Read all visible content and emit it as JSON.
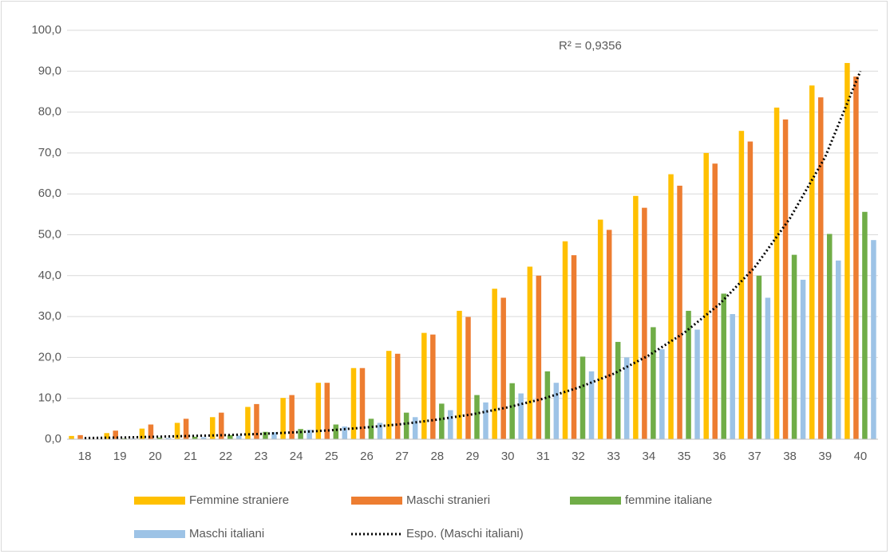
{
  "chart_data": {
    "type": "bar",
    "categories": [
      "18",
      "19",
      "20",
      "21",
      "22",
      "23",
      "24",
      "25",
      "26",
      "27",
      "28",
      "29",
      "30",
      "31",
      "32",
      "33",
      "34",
      "35",
      "36",
      "37",
      "38",
      "39",
      "40"
    ],
    "series": [
      {
        "name": "Femmine straniere",
        "color": "#ffc000",
        "values": [
          0.8,
          1.5,
          2.6,
          4.0,
          5.4,
          7.9,
          10.1,
          13.8,
          17.4,
          21.6,
          26.0,
          31.4,
          36.8,
          42.2,
          48.4,
          53.7,
          59.5,
          64.8,
          70.0,
          75.4,
          81.1,
          86.5,
          92.0
        ]
      },
      {
        "name": "Maschi stranieri",
        "color": "#ed7d31",
        "values": [
          1.0,
          2.1,
          3.6,
          5.0,
          6.5,
          8.6,
          10.8,
          13.8,
          17.4,
          20.9,
          25.6,
          29.9,
          34.6,
          40.0,
          45.0,
          51.2,
          56.6,
          62.0,
          67.4,
          72.8,
          78.2,
          83.6,
          88.7
        ]
      },
      {
        "name": "femmine italiane",
        "color": "#70ad47",
        "values": [
          0.1,
          0.2,
          0.4,
          0.6,
          1.0,
          1.8,
          2.5,
          3.6,
          5.0,
          6.5,
          8.7,
          10.8,
          13.7,
          16.6,
          20.2,
          23.8,
          27.4,
          31.4,
          35.6,
          40.0,
          45.1,
          50.2,
          55.6
        ]
      },
      {
        "name": "Maschi italiani",
        "color": "#9dc3e6",
        "values": [
          0.1,
          0.2,
          0.3,
          0.5,
          0.9,
          1.7,
          2.3,
          3.1,
          4.0,
          5.4,
          7.1,
          9.0,
          11.2,
          13.8,
          16.6,
          20.0,
          22.0,
          26.8,
          30.6,
          34.6,
          39.0,
          43.7,
          48.7
        ]
      }
    ],
    "trendline": {
      "name": "Espo. (Maschi italiani)",
      "color": "#000000",
      "label": "R² = 0,9356",
      "values": [
        0.3,
        0.4,
        0.6,
        0.8,
        1.0,
        1.3,
        1.7,
        2.2,
        2.9,
        3.7,
        4.8,
        6.1,
        7.8,
        9.9,
        12.6,
        16.0,
        20.5,
        26.0,
        33.0,
        42.0,
        54.0,
        69.0,
        90.0
      ]
    },
    "ylim": [
      0,
      100
    ],
    "yticks": [
      {
        "value": 0,
        "label": "0,0"
      },
      {
        "value": 10,
        "label": "10,0"
      },
      {
        "value": 20,
        "label": "20,0"
      },
      {
        "value": 30,
        "label": "30,0"
      },
      {
        "value": 40,
        "label": "40,0"
      },
      {
        "value": 50,
        "label": "50,0"
      },
      {
        "value": 60,
        "label": "60,0"
      },
      {
        "value": 70,
        "label": "70,0"
      },
      {
        "value": 80,
        "label": "80,0"
      },
      {
        "value": 90,
        "label": "90,0"
      },
      {
        "value": 100,
        "label": "100,0"
      }
    ],
    "grid": true
  }
}
